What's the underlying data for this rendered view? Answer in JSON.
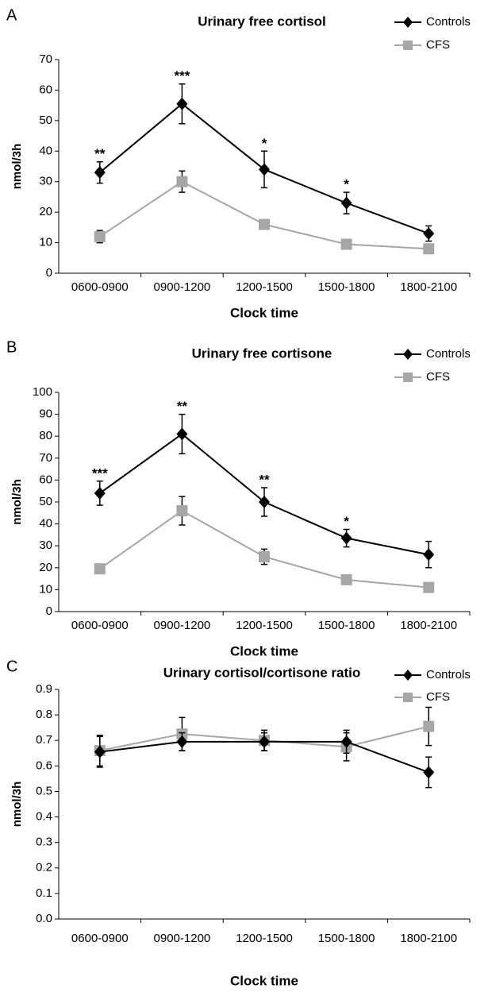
{
  "chart_data": [
    {
      "type": "line",
      "panel": "A",
      "title": "Urinary free cortisol",
      "x_label": "Clock time",
      "y_label": "nmol/3h",
      "categories": [
        "0600-0900",
        "0900-1200",
        "1200-1500",
        "1500-1800",
        "1800-2100"
      ],
      "series": [
        {
          "name": "Controls",
          "color": "#000000",
          "marker": "diamond",
          "values": [
            33,
            55.5,
            34,
            23,
            13
          ],
          "errors": [
            3.5,
            6.5,
            6,
            3.5,
            2.5
          ]
        },
        {
          "name": "CFS",
          "color": "#a6a6a6",
          "marker": "square",
          "values": [
            12,
            30,
            16,
            9.5,
            8
          ],
          "errors": [
            2,
            3.5,
            1,
            0.5,
            0.5
          ]
        }
      ],
      "annotations": [
        "**",
        "***",
        "*",
        "*",
        null
      ],
      "ylim": [
        0,
        70
      ],
      "yticks": [
        0,
        10,
        20,
        30,
        40,
        50,
        60,
        70
      ],
      "legend": "top-right"
    },
    {
      "type": "line",
      "panel": "B",
      "title": "Urinary free cortisone",
      "x_label": "Clock time",
      "y_label": "nmol/3h",
      "categories": [
        "0600-0900",
        "0900-1200",
        "1200-1500",
        "1500-1800",
        "1800-2100"
      ],
      "series": [
        {
          "name": "Controls",
          "color": "#000000",
          "marker": "diamond",
          "values": [
            54,
            81,
            50,
            33.5,
            26
          ],
          "errors": [
            5.5,
            9,
            6.5,
            4,
            6
          ]
        },
        {
          "name": "CFS",
          "color": "#a6a6a6",
          "marker": "square",
          "values": [
            19.5,
            46,
            25,
            14.5,
            11
          ],
          "errors": [
            2,
            6.5,
            3.5,
            1,
            1
          ]
        }
      ],
      "annotations": [
        "***",
        "**",
        "**",
        "*",
        null
      ],
      "ylim": [
        0,
        100
      ],
      "yticks": [
        0,
        10,
        20,
        30,
        40,
        50,
        60,
        70,
        80,
        90,
        100
      ],
      "legend": "top-right"
    },
    {
      "type": "line",
      "panel": "C",
      "title": "Urinary cortisol/cortisone ratio",
      "x_label": "Clock time",
      "y_label": "nmol/3h",
      "categories": [
        "0600-0900",
        "0900-1200",
        "1200-1500",
        "1500-1800",
        "1800-2100"
      ],
      "series": [
        {
          "name": "Controls",
          "color": "#000000",
          "marker": "diamond",
          "values": [
            0.655,
            0.695,
            0.695,
            0.695,
            0.575
          ],
          "errors": [
            0.06,
            0.035,
            0.035,
            0.045,
            0.06
          ]
        },
        {
          "name": "CFS",
          "color": "#a6a6a6",
          "marker": "square",
          "values": [
            0.66,
            0.725,
            0.7,
            0.675,
            0.755
          ],
          "errors": [
            0.06,
            0.065,
            0.04,
            0.055,
            0.075
          ]
        }
      ],
      "ylim": [
        0,
        0.9
      ],
      "yticks": [
        {
          "value": 0,
          "label": "0.0"
        },
        0.1,
        0.2,
        0.3,
        0.4,
        0.5,
        0.6,
        0.7,
        0.8,
        0.9
      ],
      "legend": "top-right"
    }
  ]
}
